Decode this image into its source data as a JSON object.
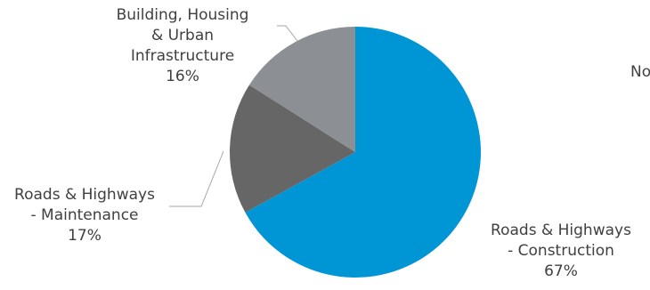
{
  "chart_data": {
    "type": "pie",
    "slices": [
      {
        "label_lines": [
          "Roads & Highways",
          "- Construction"
        ],
        "percent_label": "67%",
        "value": 67,
        "color": "#0096D6"
      },
      {
        "label_lines": [
          "Roads & Highways",
          "- Maintenance"
        ],
        "percent_label": "17%",
        "value": 17,
        "color": "#666666"
      },
      {
        "label_lines": [
          "Building, Housing",
          "& Urban",
          "Infrastructure"
        ],
        "percent_label": "16%",
        "value": 16,
        "color": "#8C8F94"
      }
    ],
    "start_angle_deg": 0,
    "direction": "clockwise",
    "partial_label": "No"
  }
}
